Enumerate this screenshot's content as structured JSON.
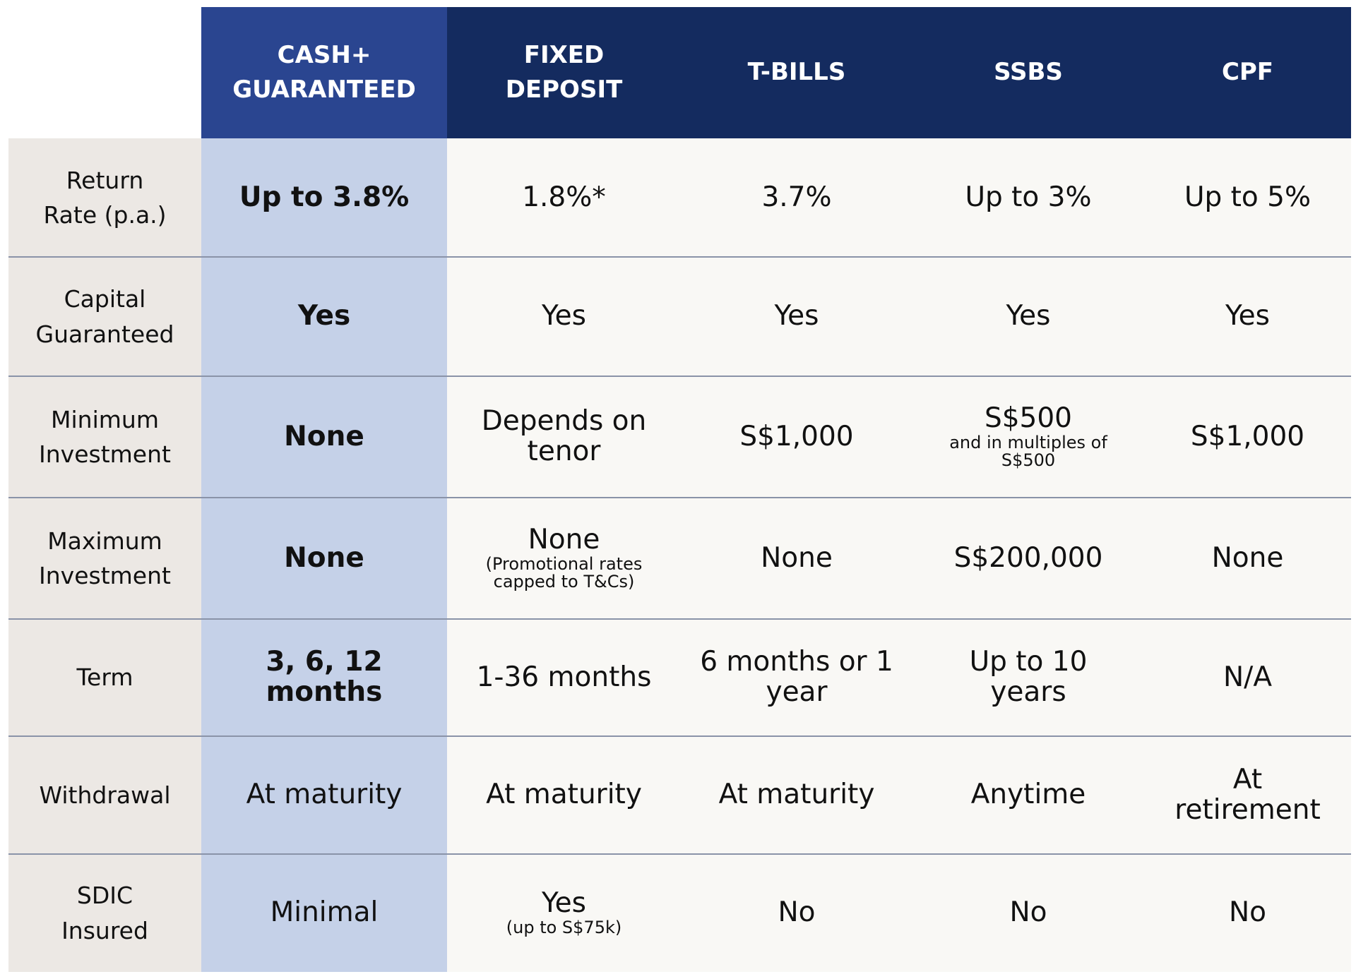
{
  "header": {
    "columns": [
      "CASH+ GUARANTEED",
      "FIXED DEPOSIT",
      "T-BILLS",
      "SSBS",
      "CPF"
    ]
  },
  "table": {
    "rows": [
      {
        "label": "Return Rate (p.a.)",
        "cells": [
          {
            "text": "Up to 3.8%"
          },
          {
            "text": "1.8%*"
          },
          {
            "text": "3.7%"
          },
          {
            "text": "Up to 3%"
          },
          {
            "text": "Up to 5%"
          }
        ]
      },
      {
        "label": "Capital Guaranteed",
        "cells": [
          {
            "text": "Yes"
          },
          {
            "text": "Yes"
          },
          {
            "text": "Yes"
          },
          {
            "text": "Yes"
          },
          {
            "text": "Yes"
          }
        ]
      },
      {
        "label": "Minimum Investment",
        "cells": [
          {
            "text": "None"
          },
          {
            "text": "Depends on tenor"
          },
          {
            "text": "S$1,000"
          },
          {
            "text": "S$500",
            "note": "and in multiples of S$500"
          },
          {
            "text": "S$1,000"
          }
        ]
      },
      {
        "label": "Maximum Investment",
        "cells": [
          {
            "text": "None"
          },
          {
            "text": "None",
            "note": "(Promotional rates capped to T&Cs)"
          },
          {
            "text": "None"
          },
          {
            "text": "S$200,000"
          },
          {
            "text": "None"
          }
        ]
      },
      {
        "label": "Term",
        "cells": [
          {
            "text": "3, 6, 12 months"
          },
          {
            "text": "1-36 months"
          },
          {
            "text": "6 months or 1 year"
          },
          {
            "text": "Up to 10 years"
          },
          {
            "text": "N/A"
          }
        ]
      },
      {
        "label": "Withdrawal",
        "cells": [
          {
            "text": "At maturity"
          },
          {
            "text": "At maturity"
          },
          {
            "text": "At maturity"
          },
          {
            "text": "Anytime"
          },
          {
            "text": "At retirement"
          }
        ]
      },
      {
        "label": "SDIC Insured",
        "cells": [
          {
            "text": "Minimal"
          },
          {
            "text": "Yes",
            "note": "(up to S$75k)"
          },
          {
            "text": "No"
          },
          {
            "text": "No"
          },
          {
            "text": "No"
          }
        ]
      }
    ]
  }
}
